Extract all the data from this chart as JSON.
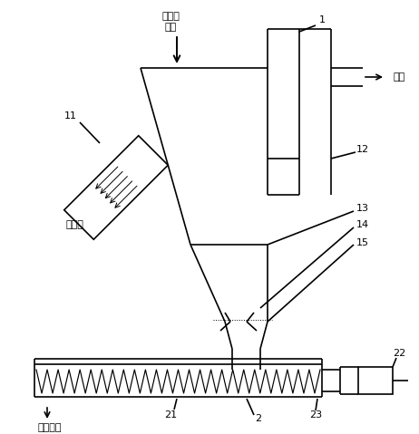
{
  "bg_color": "#ffffff",
  "line_color": "#000000",
  "line_width": 1.2,
  "figsize": [
    4.62,
    4.79
  ],
  "dpi": 100,
  "labels": {
    "biomass_line1": "生物质",
    "biomass_line2": "燃料",
    "flue_gas": "烟气",
    "heat_medium": "热介质",
    "solid_product": "固体产物",
    "num1": "1",
    "num2": "2",
    "num11": "11",
    "num12": "12",
    "num13": "13",
    "num14": "14",
    "num15": "15",
    "num21": "21",
    "num22": "22",
    "num23": "23"
  }
}
